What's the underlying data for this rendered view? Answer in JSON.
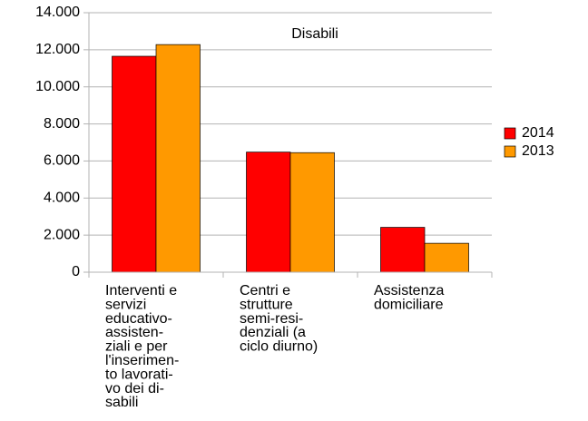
{
  "chart_data": {
    "type": "bar",
    "title": "Disabili",
    "categories": [
      "Interventi e\nservizi\neducativo-\nassisten-\nziali e per\nl'inserimen-\nto lavorati-\nvo dei di-\nsabili",
      "Centri e\nstrutture\nsemi-resi-\ndenziali (a\nciclo diurno)",
      "Assistenza\ndomiciliare"
    ],
    "series": [
      {
        "name": "2014",
        "color": "#ff0000",
        "values": [
          11650,
          6480,
          2420
        ]
      },
      {
        "name": "2013",
        "color": "#ff9900",
        "values": [
          12280,
          6450,
          1560
        ]
      }
    ],
    "ylim": [
      0,
      14000
    ],
    "yticks": [
      {
        "value": 0,
        "label": "0"
      },
      {
        "value": 2000,
        "label": "2.000"
      },
      {
        "value": 4000,
        "label": "4.000"
      },
      {
        "value": 6000,
        "label": "6.000"
      },
      {
        "value": 8000,
        "label": "8.000"
      },
      {
        "value": 10000,
        "label": "10.000"
      },
      {
        "value": 12000,
        "label": "12.000"
      },
      {
        "value": 14000,
        "label": "14.000"
      }
    ],
    "grid": true,
    "legend": "right"
  }
}
